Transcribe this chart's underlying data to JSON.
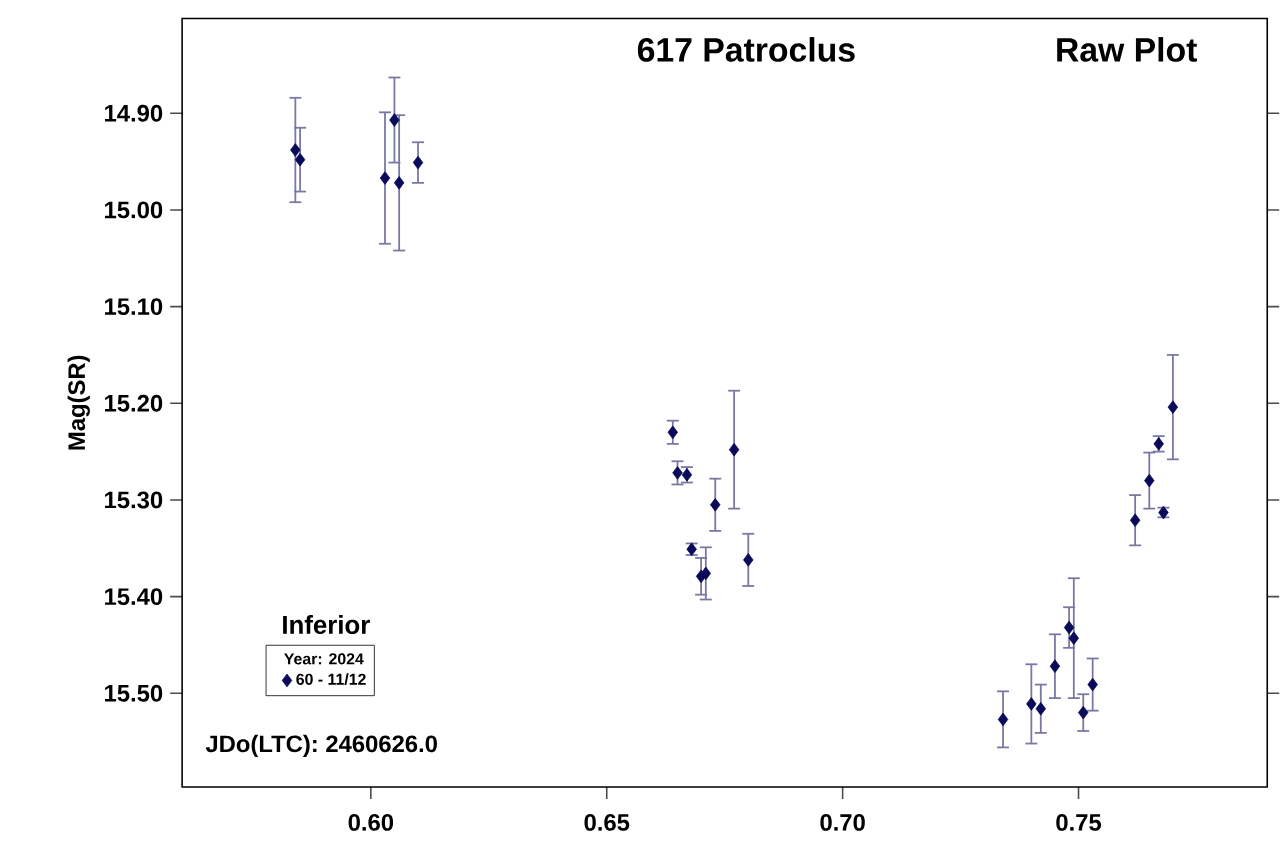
{
  "chart_data": {
    "type": "scatter",
    "title": "617 Patroclus",
    "subtitle": "Raw Plot",
    "ylabel": "Mag(SR)",
    "legend_title": "Year: 2024",
    "annotations": [
      "Inferior",
      "JDo(LTC): 2460626.0"
    ],
    "series": [
      {
        "name": "60 - 11/12",
        "color": "#0a0a5a",
        "x": [
          0.584,
          0.585,
          0.603,
          0.605,
          0.606,
          0.61,
          0.664,
          0.665,
          0.667,
          0.677,
          0.673,
          0.668,
          0.67,
          0.671,
          0.68,
          0.734,
          0.74,
          0.742,
          0.745,
          0.748,
          0.749,
          0.753,
          0.751,
          0.762,
          0.765,
          0.767,
          0.768,
          0.77
        ],
        "values": [
          14.938,
          14.948,
          14.967,
          14.907,
          14.972,
          14.951,
          15.23,
          15.272,
          15.274,
          15.248,
          15.305,
          15.351,
          15.379,
          15.376,
          15.362,
          15.527,
          15.511,
          15.516,
          15.472,
          15.432,
          15.443,
          15.491,
          15.52,
          15.321,
          15.28,
          15.242,
          15.313,
          15.204
        ],
        "errors": [
          0.054,
          0.033,
          0.068,
          0.044,
          0.07,
          0.021,
          0.012,
          0.012,
          0.008,
          0.061,
          0.027,
          0.006,
          0.019,
          0.027,
          0.027,
          0.029,
          0.041,
          0.025,
          0.033,
          0.021,
          0.062,
          0.027,
          0.019,
          0.026,
          0.029,
          0.008,
          0.005,
          0.054
        ]
      }
    ],
    "xlim": [
      0.56,
      0.79
    ],
    "ylim": [
      15.597,
      14.802
    ],
    "xticks": [
      {
        "value": 0.6,
        "label": "0.60"
      },
      {
        "value": 0.65,
        "label": "0.65"
      },
      {
        "value": 0.7,
        "label": "0.70"
      },
      {
        "value": 0.75,
        "label": "0.75"
      }
    ],
    "yticks": [
      {
        "value": 14.9,
        "label": "14.90"
      },
      {
        "value": 15.0,
        "label": "15.00"
      },
      {
        "value": 15.1,
        "label": "15.10"
      },
      {
        "value": 15.2,
        "label": "15.20"
      },
      {
        "value": 15.3,
        "label": "15.30"
      },
      {
        "value": 15.4,
        "label": "15.40"
      },
      {
        "value": 15.5,
        "label": "15.50"
      }
    ],
    "marker": "diamond",
    "legend": "bottom left",
    "grid": false
  }
}
